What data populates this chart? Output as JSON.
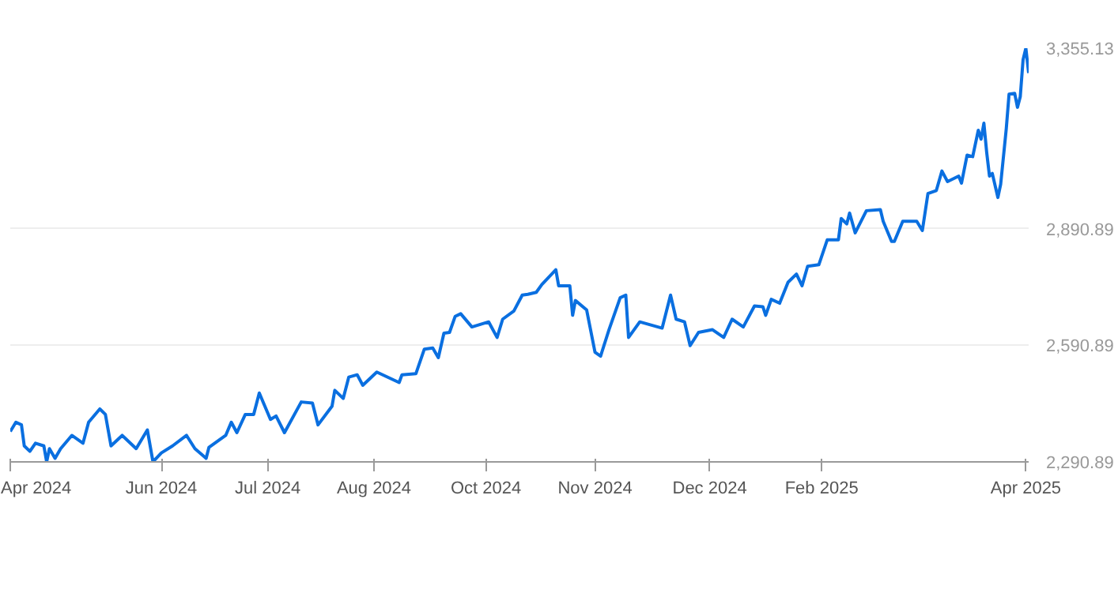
{
  "chart_data": {
    "type": "line",
    "x": [
      "2024-04-19",
      "2024-04-21",
      "2024-04-23",
      "2024-04-24",
      "2024-04-26",
      "2024-04-28",
      "2024-05-01",
      "2024-05-02",
      "2024-05-03",
      "2024-05-05",
      "2024-05-07",
      "2024-05-11",
      "2024-05-15",
      "2024-05-17",
      "2024-05-21",
      "2024-05-23",
      "2024-05-25",
      "2024-05-29",
      "2024-06-03",
      "2024-06-07",
      "2024-06-09",
      "2024-06-12",
      "2024-06-16",
      "2024-06-21",
      "2024-06-24",
      "2024-06-28",
      "2024-06-29",
      "2024-07-05",
      "2024-07-07",
      "2024-07-09",
      "2024-07-12",
      "2024-07-15",
      "2024-07-17",
      "2024-07-21",
      "2024-07-23",
      "2024-07-26",
      "2024-08-01",
      "2024-08-05",
      "2024-08-07",
      "2024-08-12",
      "2024-08-13",
      "2024-08-16",
      "2024-08-18",
      "2024-08-21",
      "2024-08-23",
      "2024-08-28",
      "2024-09-05",
      "2024-09-06",
      "2024-09-11",
      "2024-09-14",
      "2024-09-17",
      "2024-09-19",
      "2024-09-21",
      "2024-09-23",
      "2024-09-25",
      "2024-09-27",
      "2024-10-01",
      "2024-10-07",
      "2024-10-10",
      "2024-10-12",
      "2024-10-16",
      "2024-10-19",
      "2024-10-21",
      "2024-10-24",
      "2024-10-26",
      "2024-10-31",
      "2024-11-01",
      "2024-11-05",
      "2024-11-06",
      "2024-11-07",
      "2024-11-11",
      "2024-11-14",
      "2024-11-16",
      "2024-11-19",
      "2024-11-23",
      "2024-11-25",
      "2024-11-26",
      "2024-11-30",
      "2024-12-08",
      "2024-12-11",
      "2024-12-13",
      "2024-12-16",
      "2024-12-18",
      "2024-12-21",
      "2024-12-26",
      "2024-12-30",
      "2025-01-02",
      "2025-01-06",
      "2025-01-10",
      "2025-01-13",
      "2025-01-14",
      "2025-01-16",
      "2025-01-19",
      "2025-01-22",
      "2025-01-25",
      "2025-01-27",
      "2025-01-29",
      "2025-02-02",
      "2025-02-05",
      "2025-02-09",
      "2025-02-10",
      "2025-02-12",
      "2025-02-13",
      "2025-02-15",
      "2025-02-19",
      "2025-02-24",
      "2025-02-25",
      "2025-02-28",
      "2025-03-01",
      "2025-03-04",
      "2025-03-09",
      "2025-03-11",
      "2025-03-13",
      "2025-03-16",
      "2025-03-18",
      "2025-03-20",
      "2025-03-24",
      "2025-03-25",
      "2025-03-27",
      "2025-03-29",
      "2025-03-31",
      "2025-04-01",
      "2025-04-02",
      "2025-04-03",
      "2025-04-04",
      "2025-04-05",
      "2025-04-07",
      "2025-04-08",
      "2025-04-10",
      "2025-04-11",
      "2025-04-13",
      "2025-04-14",
      "2025-04-15",
      "2025-04-16",
      "2025-04-17",
      "2025-04-18"
    ],
    "series": [
      {
        "color": "#0a6fe0",
        "values": [
          2369,
          2393,
          2386,
          2332,
          2318,
          2339,
          2332,
          2291,
          2325,
          2300,
          2325,
          2359,
          2339,
          2393,
          2427,
          2413,
          2332,
          2359,
          2325,
          2373,
          2291,
          2314,
          2332,
          2359,
          2325,
          2300,
          2328,
          2359,
          2393,
          2366,
          2413,
          2413,
          2468,
          2400,
          2409,
          2366,
          2445,
          2442,
          2386,
          2434,
          2475,
          2454,
          2509,
          2515,
          2488,
          2522,
          2495,
          2515,
          2518,
          2581,
          2584,
          2559,
          2622,
          2624,
          2665,
          2672,
          2638,
          2651,
          2611,
          2658,
          2679,
          2720,
          2722,
          2727,
          2747,
          2785,
          2744,
          2744,
          2668,
          2706,
          2682,
          2573,
          2563,
          2631,
          2713,
          2720,
          2611,
          2651,
          2635,
          2720,
          2658,
          2651,
          2590,
          2624,
          2631,
          2611,
          2658,
          2638,
          2692,
          2690,
          2668,
          2709,
          2699,
          2753,
          2774,
          2744,
          2794,
          2798,
          2862,
          2862,
          2917,
          2903,
          2931,
          2880,
          2937,
          2940,
          2910,
          2858,
          2858,
          2910,
          2910,
          2886,
          2981,
          2989,
          3039,
          3012,
          3026,
          3008,
          3080,
          3076,
          3144,
          3121,
          3162,
          3087,
          3026,
          3033,
          2971,
          3005,
          3148,
          3237,
          3239,
          3203,
          3230,
          3325,
          3355,
          3291
        ]
      }
    ],
    "xlim": [
      "2024-04-19",
      "2025-04-18"
    ],
    "xticks": [
      {
        "value": "2024-04-19",
        "label": "Apr 2024"
      },
      {
        "value": "2024-06-12",
        "label": "Jun 2024"
      },
      {
        "value": "2024-07-20",
        "label": "Jul 2024"
      },
      {
        "value": "2024-08-27",
        "label": "Aug 2024"
      },
      {
        "value": "2024-10-06",
        "label": "Oct 2024"
      },
      {
        "value": "2024-11-14",
        "label": "Nov 2024"
      },
      {
        "value": "2024-12-25",
        "label": "Dec 2024"
      },
      {
        "value": "2025-02-03",
        "label": "Feb 2025"
      },
      {
        "value": "2025-04-17",
        "label": "Apr 2025"
      }
    ],
    "ylim": [
      2290.89,
      3355.13
    ],
    "yticks": [
      {
        "value": 2290.89,
        "label": "2,290.89"
      },
      {
        "value": 2590.89,
        "label": "2,590.89"
      },
      {
        "value": 2890.89,
        "label": "2,890.89"
      },
      {
        "value": 3355.13,
        "label": "3,355.13"
      }
    ],
    "grid": "y",
    "marker": "none",
    "line_style": "solid"
  }
}
